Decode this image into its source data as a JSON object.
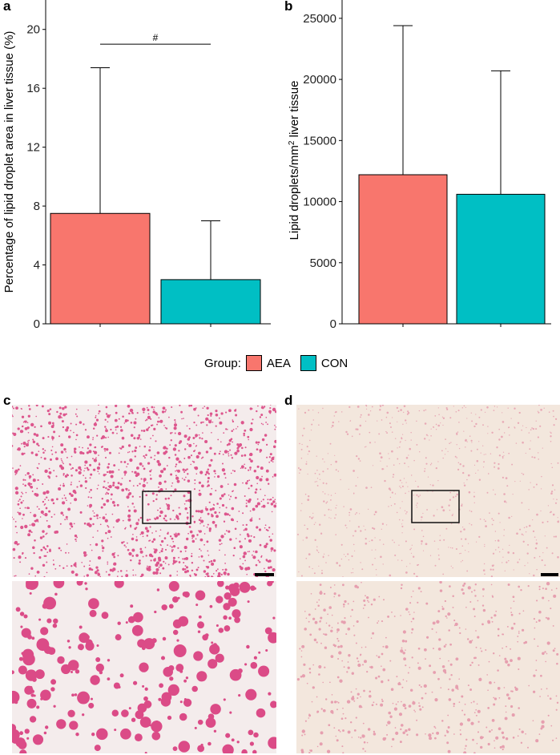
{
  "panels": {
    "a": "a",
    "b": "b",
    "c": "c",
    "d": "d"
  },
  "legend": {
    "title": "Group:",
    "items": [
      {
        "label": "AEA",
        "color": "#F8766D"
      },
      {
        "label": "CON",
        "color": "#00BFC4"
      }
    ]
  },
  "chart_data": [
    {
      "panel": "a",
      "type": "bar",
      "categories": [
        "AEA",
        "CON"
      ],
      "series": [
        {
          "values": [
            7.5,
            3.0
          ],
          "error_upper": [
            17.4,
            7.0
          ]
        }
      ],
      "colors": [
        "#F8766D",
        "#00BFC4"
      ],
      "ylabel": "Percentage of lipid droplet area in liver tissue (%)",
      "ylim": [
        0,
        22
      ],
      "yticks": [
        0,
        4,
        8,
        12,
        16,
        20
      ],
      "annotation": {
        "text": "#",
        "between": [
          "AEA",
          "CON"
        ],
        "y": 19.0
      },
      "grid": false
    },
    {
      "panel": "b",
      "type": "bar",
      "categories": [
        "AEA",
        "CON"
      ],
      "series": [
        {
          "values": [
            12200,
            10600
          ],
          "error_upper": [
            24400,
            20700
          ]
        }
      ],
      "colors": [
        "#F8766D",
        "#00BFC4"
      ],
      "ylabel_prefix": "Lipid droplets/mm",
      "ylabel_sup": "2",
      "ylabel_suffix": " liver tissue",
      "ylim": [
        0,
        26500
      ],
      "yticks": [
        0,
        5000,
        10000,
        15000,
        20000,
        25000
      ],
      "grid": false
    }
  ],
  "micrographs": {
    "colors": {
      "aea_background": "#f4ecec",
      "aea_droplet": "#d6246e",
      "con_background": "#f3e7dd",
      "con_droplet": "#e07a98"
    }
  }
}
